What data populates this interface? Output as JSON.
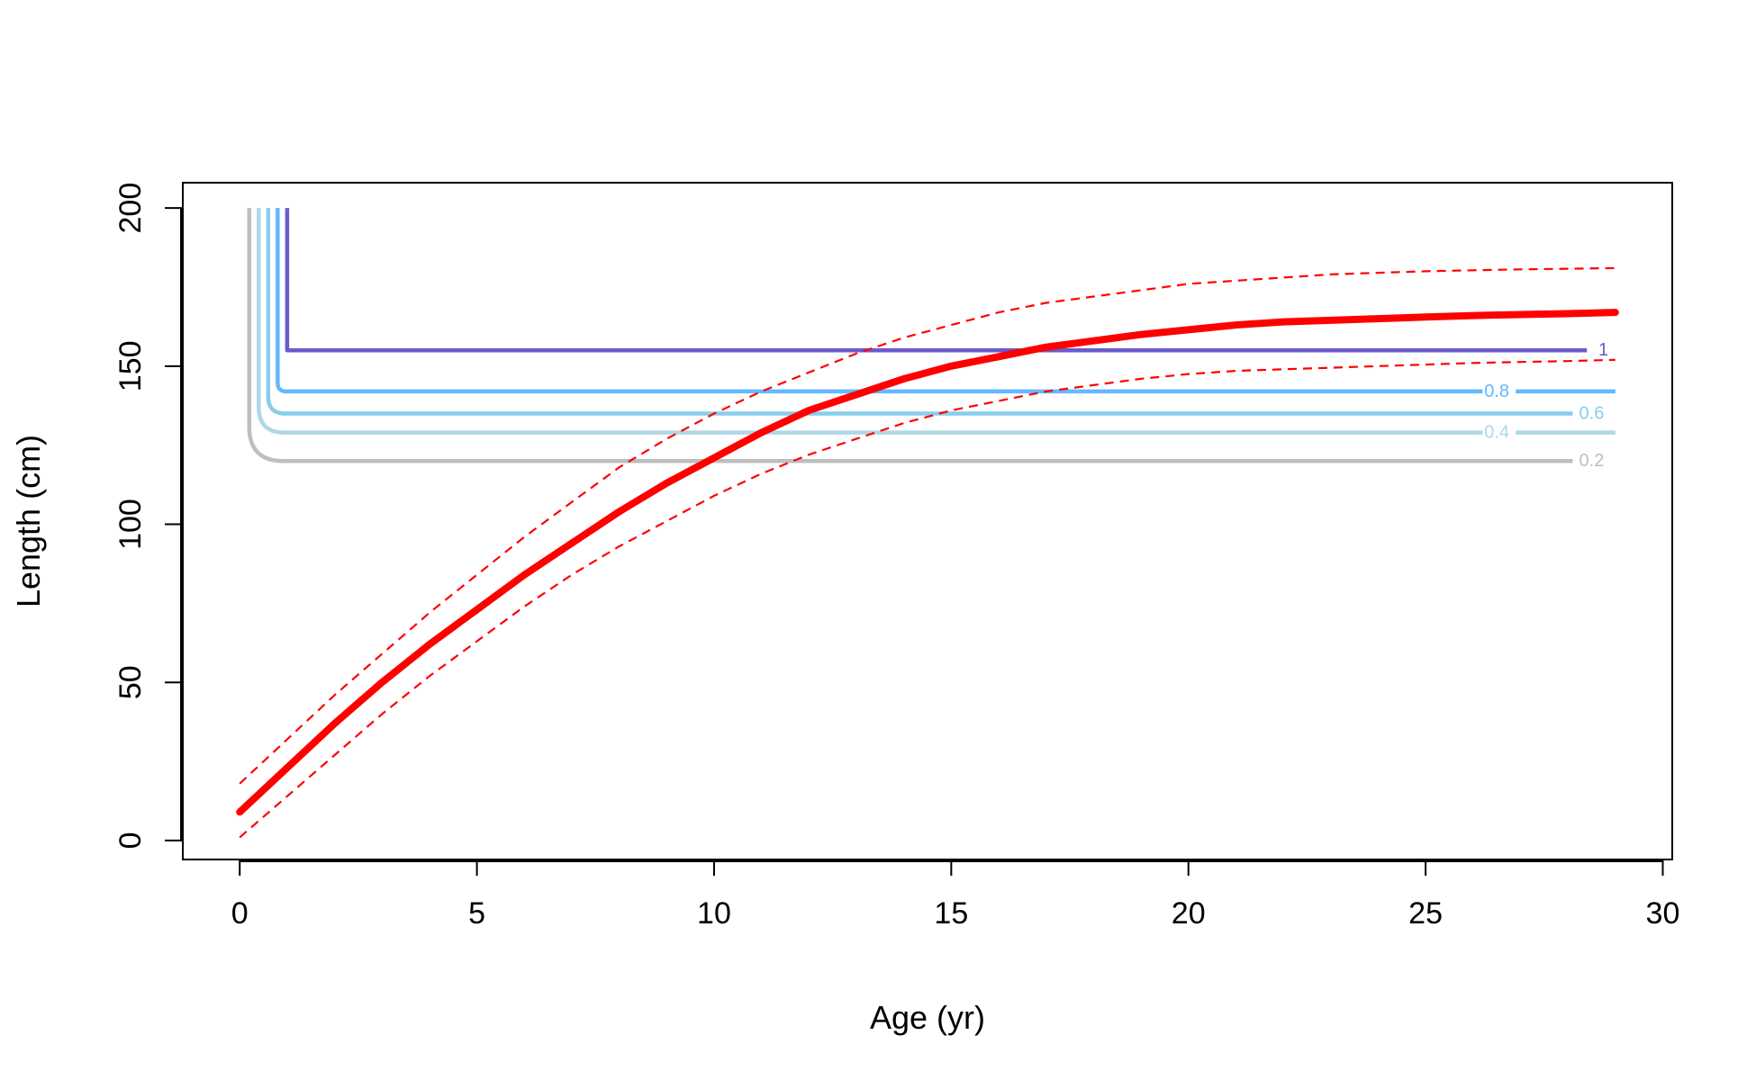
{
  "chart_data": {
    "type": "line",
    "xlabel": "Age (yr)",
    "ylabel": "Length (cm)",
    "xlim": [
      -1.2,
      30.2
    ],
    "ylim": [
      -6,
      208
    ],
    "x_ticks": [
      0,
      5,
      10,
      15,
      20,
      25,
      30
    ],
    "y_ticks": [
      0,
      50,
      100,
      150,
      200
    ],
    "x_tick_labels": [
      "0",
      "5",
      "10",
      "15",
      "20",
      "25",
      "30"
    ],
    "y_tick_labels": [
      "0",
      "50",
      "100",
      "150",
      "200"
    ],
    "grid": false,
    "growth_curve": {
      "color": "#ff0000",
      "x": [
        0,
        1,
        2,
        3,
        4,
        5,
        6,
        7,
        8,
        9,
        10,
        11,
        12,
        13,
        14,
        15,
        16,
        17,
        18,
        19,
        20,
        21,
        22,
        23,
        24,
        25,
        26,
        27,
        28,
        29
      ],
      "mean": [
        9,
        23,
        37,
        50,
        62,
        73,
        84,
        94,
        104,
        113,
        121,
        129,
        136,
        141,
        146,
        150,
        153,
        156,
        158,
        160,
        161.5,
        163,
        164,
        164.5,
        165,
        165.5,
        166,
        166.3,
        166.6,
        167
      ],
      "upper": [
        18,
        32,
        46,
        59,
        72,
        84,
        96,
        107,
        118,
        127,
        135,
        142,
        148,
        154,
        159,
        163,
        167,
        170,
        172,
        174,
        176,
        177,
        178,
        179,
        179.5,
        180,
        180.3,
        180.6,
        180.8,
        181
      ],
      "lower": [
        1,
        14,
        27,
        40,
        52,
        63,
        74,
        84,
        93,
        101,
        109,
        116,
        122,
        127,
        132,
        136,
        139,
        142,
        144,
        146,
        147.5,
        148.5,
        149,
        149.5,
        150,
        150.5,
        151,
        151.3,
        151.6,
        152
      ]
    },
    "selectivity_contours": [
      {
        "label": "0.2",
        "color": "#bebebe",
        "x_vertical": 0.2,
        "y_level": 120,
        "x_end": 28.1,
        "label_x": 28.5
      },
      {
        "label": "0.4",
        "color": "#add8e6",
        "x_vertical": 0.4,
        "y_level": 129,
        "x_end": 26.2,
        "label_x": 26.5,
        "x_resume": 26.9,
        "x_resume_end": 29
      },
      {
        "label": "0.6",
        "color": "#87ceeb",
        "x_vertical": 0.6,
        "y_level": 135,
        "x_end": 28.1,
        "label_x": 28.5
      },
      {
        "label": "0.8",
        "color": "#63b8ff",
        "x_vertical": 0.8,
        "y_level": 142,
        "x_end": 26.2,
        "label_x": 26.5,
        "x_resume": 26.9,
        "x_resume_end": 29
      },
      {
        "label": "1",
        "color": "#6a5acd",
        "x_vertical": 1.0,
        "y_level": 155,
        "x_end": 28.4,
        "label_x": 28.75
      }
    ]
  }
}
